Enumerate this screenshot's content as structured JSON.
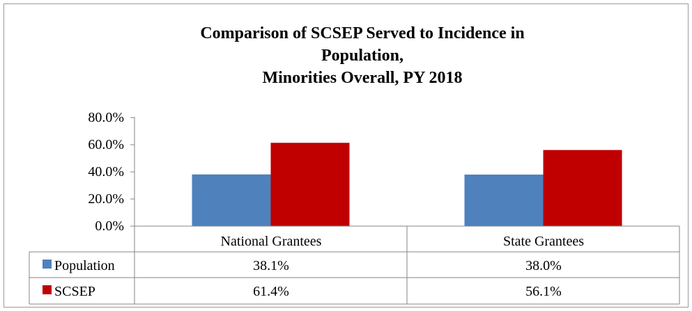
{
  "chart_data": {
    "type": "bar",
    "title_lines": [
      "Comparison of SCSEP Served to Incidence in",
      "Population,",
      "Minorities Overall, PY 2018"
    ],
    "categories": [
      "National Grantees",
      "State Grantees"
    ],
    "series": [
      {
        "name": "Population",
        "values": [
          38.1,
          38.0
        ],
        "labels": [
          "38.1%",
          "38.0%"
        ],
        "color": "#4f81bd"
      },
      {
        "name": "SCSEP",
        "values": [
          61.4,
          56.1
        ],
        "labels": [
          "61.4%",
          "56.1%"
        ],
        "color": "#c00000"
      }
    ],
    "ylim": [
      0,
      80
    ],
    "yticks": [
      "0.0%",
      "20.0%",
      "40.0%",
      "60.0%",
      "80.0%"
    ],
    "ytick_values": [
      0,
      20,
      40,
      60,
      80
    ],
    "grid": false,
    "legend": "data-table",
    "xlabel": "",
    "ylabel": ""
  }
}
